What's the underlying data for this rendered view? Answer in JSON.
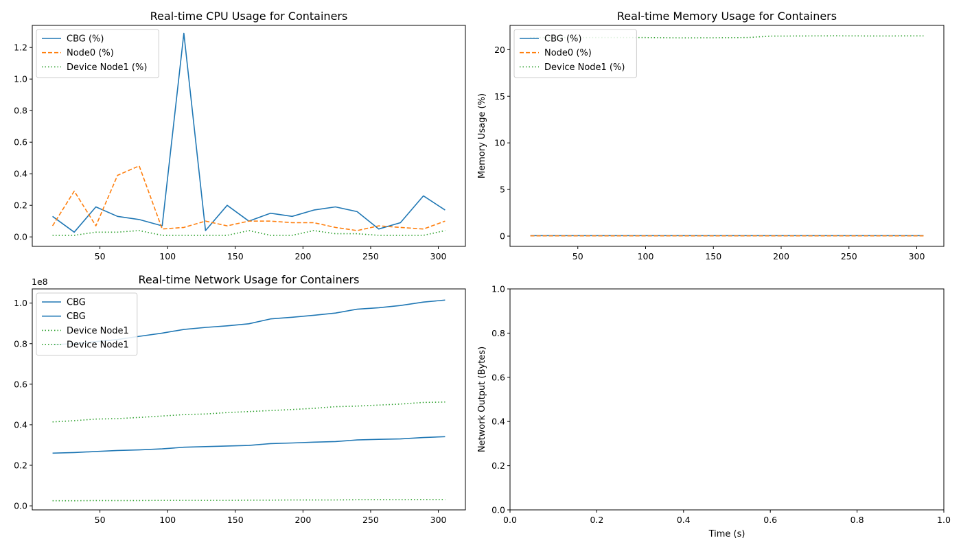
{
  "chart_data": [
    {
      "type": "line",
      "title": "Real-time CPU Usage for Containers",
      "xlabel": "",
      "ylabel": "",
      "xlim": [
        0,
        320
      ],
      "ylim": [
        -0.06,
        1.34
      ],
      "xticks": [
        50,
        100,
        150,
        200,
        250,
        300
      ],
      "yticks": [
        0.0,
        0.2,
        0.4,
        0.6,
        0.8,
        1.0,
        1.2
      ],
      "ytick_labels": [
        "0.0",
        "0.2",
        "0.4",
        "0.6",
        "0.8",
        "1.0",
        "1.2"
      ],
      "x": [
        15,
        31,
        47,
        63,
        79,
        96,
        112,
        128,
        144,
        160,
        176,
        192,
        208,
        224,
        240,
        256,
        272,
        289,
        305
      ],
      "legend_position": "upper-left",
      "grid": false,
      "series": [
        {
          "name": "CBG (%)",
          "color": "#1f77b4",
          "style": "solid",
          "values": [
            0.13,
            0.03,
            0.19,
            0.13,
            0.11,
            0.07,
            1.29,
            0.04,
            0.2,
            0.1,
            0.15,
            0.13,
            0.17,
            0.19,
            0.16,
            0.05,
            0.09,
            0.26,
            0.17
          ]
        },
        {
          "name": "Node0 (%)",
          "color": "#ff7f0e",
          "style": "dashed",
          "values": [
            0.07,
            0.29,
            0.07,
            0.39,
            0.45,
            0.05,
            0.06,
            0.1,
            0.07,
            0.1,
            0.1,
            0.09,
            0.09,
            0.06,
            0.04,
            0.07,
            0.06,
            0.05,
            0.1
          ]
        },
        {
          "name": "Device Node1 (%)",
          "color": "#2ca02c",
          "style": "dotted",
          "values": [
            0.01,
            0.01,
            0.03,
            0.03,
            0.04,
            0.01,
            0.01,
            0.01,
            0.01,
            0.04,
            0.01,
            0.01,
            0.04,
            0.02,
            0.02,
            0.01,
            0.01,
            0.01,
            0.04
          ]
        }
      ]
    },
    {
      "type": "line",
      "title": "Real-time Memory Usage for Containers",
      "xlabel": "",
      "ylabel": "Memory Usage (%)",
      "xlim": [
        0,
        320
      ],
      "ylim": [
        -1.1,
        22.6
      ],
      "xticks": [
        50,
        100,
        150,
        200,
        250,
        300
      ],
      "yticks": [
        0,
        5,
        10,
        15,
        20
      ],
      "ytick_labels": [
        "0",
        "5",
        "10",
        "15",
        "20"
      ],
      "x": [
        15,
        31,
        47,
        63,
        79,
        96,
        112,
        128,
        144,
        160,
        176,
        192,
        208,
        224,
        240,
        256,
        272,
        289,
        305
      ],
      "legend_position": "upper-left",
      "grid": false,
      "series": [
        {
          "name": "CBG (%)",
          "color": "#1f77b4",
          "style": "solid",
          "values": [
            0.05,
            0.05,
            0.05,
            0.05,
            0.05,
            0.05,
            0.05,
            0.05,
            0.05,
            0.05,
            0.05,
            0.05,
            0.05,
            0.05,
            0.05,
            0.05,
            0.05,
            0.05,
            0.05
          ]
        },
        {
          "name": "Node0 (%)",
          "color": "#ff7f0e",
          "style": "dashed",
          "values": [
            0.03,
            0.03,
            0.03,
            0.03,
            0.03,
            0.03,
            0.03,
            0.03,
            0.03,
            0.03,
            0.03,
            0.03,
            0.03,
            0.03,
            0.03,
            0.03,
            0.03,
            0.03,
            0.03
          ]
        },
        {
          "name": "Device Node1 (%)",
          "color": "#2ca02c",
          "style": "dotted",
          "values": [
            21.3,
            21.3,
            21.3,
            21.3,
            21.3,
            21.3,
            21.28,
            21.26,
            21.27,
            21.28,
            21.3,
            21.45,
            21.46,
            21.47,
            21.48,
            21.47,
            21.46,
            21.47,
            21.47
          ]
        }
      ]
    },
    {
      "type": "line",
      "title": "Real-time Network Usage for Containers",
      "xlabel": "",
      "ylabel": "",
      "xlim": [
        0,
        320
      ],
      "ylim": [
        -0.02,
        1.07
      ],
      "offset_label": "1e8",
      "xticks": [
        50,
        100,
        150,
        200,
        250,
        300
      ],
      "yticks": [
        0.0,
        0.2,
        0.4,
        0.6,
        0.8,
        1.0
      ],
      "ytick_labels": [
        "0.0",
        "0.2",
        "0.4",
        "0.6",
        "0.8",
        "1.0"
      ],
      "x": [
        15,
        31,
        47,
        63,
        79,
        96,
        112,
        128,
        144,
        160,
        176,
        192,
        208,
        224,
        240,
        256,
        272,
        289,
        305
      ],
      "legend_position": "upper-left",
      "grid": false,
      "series": [
        {
          "name": "CBG",
          "color": "#1f77b4",
          "style": "solid",
          "values": [
            0.795,
            0.8,
            0.81,
            0.82,
            0.836,
            0.852,
            0.87,
            0.88,
            0.888,
            0.898,
            0.922,
            0.93,
            0.94,
            0.951,
            0.97,
            0.977,
            0.988,
            1.005,
            1.015
          ]
        },
        {
          "name": "CBG",
          "color": "#1f77b4",
          "style": "solid",
          "values": [
            0.26,
            0.263,
            0.268,
            0.273,
            0.276,
            0.281,
            0.289,
            0.292,
            0.295,
            0.298,
            0.307,
            0.31,
            0.314,
            0.317,
            0.325,
            0.328,
            0.33,
            0.337,
            0.341
          ]
        },
        {
          "name": "Device Node1",
          "color": "#2ca02c",
          "style": "dotted",
          "values": [
            0.414,
            0.42,
            0.428,
            0.43,
            0.436,
            0.443,
            0.45,
            0.453,
            0.46,
            0.465,
            0.47,
            0.475,
            0.481,
            0.489,
            0.492,
            0.497,
            0.502,
            0.51,
            0.512
          ]
        },
        {
          "name": "Device Node1",
          "color": "#2ca02c",
          "style": "dotted",
          "values": [
            0.025,
            0.025,
            0.026,
            0.026,
            0.026,
            0.027,
            0.027,
            0.027,
            0.027,
            0.028,
            0.028,
            0.029,
            0.029,
            0.029,
            0.03,
            0.03,
            0.03,
            0.031,
            0.031
          ]
        }
      ]
    },
    {
      "type": "line",
      "title": "",
      "xlabel": "Time (s)",
      "ylabel": "Network Output (Bytes)",
      "xlim": [
        0.0,
        1.0
      ],
      "ylim": [
        0.0,
        1.0
      ],
      "xticks": [
        0.0,
        0.2,
        0.4,
        0.6,
        0.8,
        1.0
      ],
      "xtick_labels": [
        "0.0",
        "0.2",
        "0.4",
        "0.6",
        "0.8",
        "1.0"
      ],
      "yticks": [
        0.0,
        0.2,
        0.4,
        0.6,
        0.8,
        1.0
      ],
      "ytick_labels": [
        "0.0",
        "0.2",
        "0.4",
        "0.6",
        "0.8",
        "1.0"
      ],
      "grid": false,
      "series": []
    }
  ]
}
